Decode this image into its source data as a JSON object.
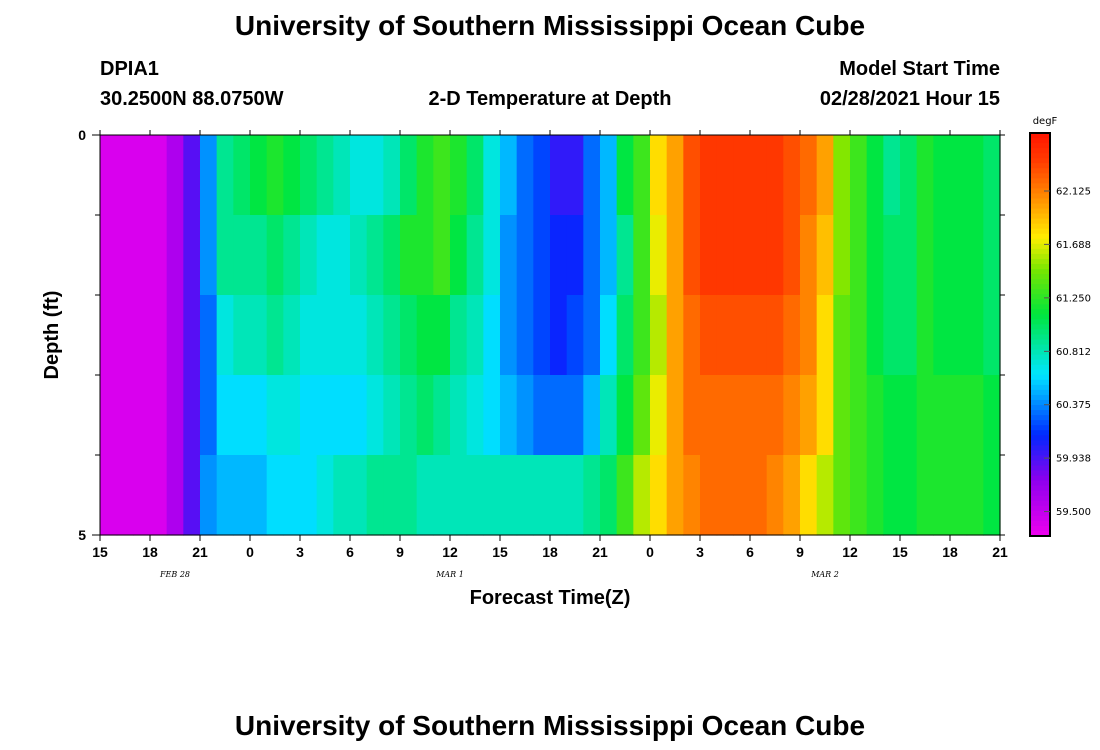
{
  "header": {
    "title_top": "University of Southern Mississippi Ocean Cube",
    "title_bottom": "University of Southern Mississippi Ocean Cube",
    "station_id": "DPIA1",
    "station_coords": "30.2500N 88.0750W",
    "model_start_label": "Model Start Time",
    "model_start_value": "02/28/2021 Hour 15"
  },
  "chart_data": {
    "type": "heatmap",
    "title": "2-D Temperature at Depth",
    "xlabel": "Forecast Time(Z)",
    "ylabel": "Depth (ft)",
    "x_tick_labels": [
      "15",
      "18",
      "21",
      "0",
      "3",
      "6",
      "9",
      "12",
      "15",
      "18",
      "21",
      "0",
      "3",
      "6",
      "9",
      "12",
      "15",
      "18",
      "21"
    ],
    "date_labels": [
      {
        "text": "FEB 28",
        "hour_index": 4.5
      },
      {
        "text": "MAR 1",
        "hour_index": 21
      },
      {
        "text": "MAR 2",
        "hour_index": 43.5
      }
    ],
    "y_tick_labels": {
      "top": "0",
      "bottom": "5"
    },
    "ylim": [
      0,
      5
    ],
    "xlim_hours": [
      0,
      54
    ],
    "colorbar": {
      "unit": "degF",
      "ticks": [
        "62.125",
        "61.688",
        "61.250",
        "60.812",
        "60.375",
        "59.938",
        "59.500"
      ],
      "min": 59.3,
      "max": 62.6
    },
    "depth_layers": 5,
    "temperature_degF": [
      [
        59.4,
        59.4,
        59.4,
        59.4,
        59.6,
        59.9,
        60.4,
        60.9,
        61.0,
        61.1,
        61.2,
        61.1,
        61.0,
        60.9,
        60.8,
        60.7,
        60.7,
        60.8,
        61.0,
        61.2,
        61.3,
        61.2,
        61.0,
        60.7,
        60.5,
        60.3,
        60.2,
        60.0,
        60.0,
        60.3,
        60.5,
        61.1,
        61.3,
        61.8,
        62.0,
        62.3,
        62.4,
        62.4,
        62.4,
        62.4,
        62.4,
        62.3,
        62.2,
        62.0,
        61.5,
        61.3,
        61.1,
        60.9,
        61.0,
        61.2,
        61.1,
        61.1,
        61.1,
        61.0
      ],
      [
        59.4,
        59.4,
        59.4,
        59.4,
        59.6,
        59.9,
        60.4,
        60.9,
        60.9,
        60.9,
        61.0,
        60.9,
        60.8,
        60.7,
        60.7,
        60.8,
        60.9,
        61.0,
        61.2,
        61.2,
        61.3,
        61.1,
        60.9,
        60.7,
        60.4,
        60.3,
        60.2,
        60.1,
        60.1,
        60.3,
        60.5,
        60.9,
        61.3,
        61.7,
        62.0,
        62.3,
        62.4,
        62.4,
        62.4,
        62.4,
        62.4,
        62.3,
        62.1,
        61.9,
        61.5,
        61.3,
        61.1,
        61.0,
        61.0,
        61.2,
        61.1,
        61.1,
        61.1,
        61.0
      ],
      [
        59.4,
        59.4,
        59.4,
        59.4,
        59.6,
        59.9,
        60.3,
        60.7,
        60.8,
        60.8,
        60.9,
        60.8,
        60.7,
        60.7,
        60.7,
        60.7,
        60.8,
        60.9,
        61.0,
        61.1,
        61.1,
        60.9,
        60.8,
        60.6,
        60.4,
        60.3,
        60.2,
        60.1,
        60.2,
        60.3,
        60.6,
        61.0,
        61.3,
        61.6,
        62.0,
        62.2,
        62.3,
        62.3,
        62.3,
        62.3,
        62.3,
        62.2,
        62.1,
        61.8,
        61.4,
        61.3,
        61.1,
        61.0,
        61.0,
        61.2,
        61.1,
        61.1,
        61.1,
        61.0
      ],
      [
        59.4,
        59.4,
        59.4,
        59.4,
        59.6,
        59.9,
        60.3,
        60.6,
        60.6,
        60.6,
        60.7,
        60.7,
        60.6,
        60.6,
        60.6,
        60.6,
        60.7,
        60.8,
        60.9,
        61.0,
        60.9,
        60.8,
        60.7,
        60.6,
        60.5,
        60.4,
        60.3,
        60.3,
        60.3,
        60.5,
        60.8,
        61.1,
        61.4,
        61.7,
        62.0,
        62.2,
        62.2,
        62.2,
        62.2,
        62.2,
        62.2,
        62.1,
        62.0,
        61.8,
        61.4,
        61.3,
        61.2,
        61.1,
        61.1,
        61.2,
        61.2,
        61.2,
        61.2,
        61.1
      ],
      [
        59.4,
        59.4,
        59.4,
        59.4,
        59.6,
        59.9,
        60.4,
        60.5,
        60.5,
        60.5,
        60.6,
        60.6,
        60.6,
        60.7,
        60.8,
        60.8,
        60.9,
        60.9,
        60.9,
        60.8,
        60.8,
        60.8,
        60.8,
        60.8,
        60.8,
        60.8,
        60.8,
        60.8,
        60.8,
        60.9,
        61.0,
        61.3,
        61.6,
        61.8,
        62.0,
        62.1,
        62.2,
        62.2,
        62.2,
        62.2,
        62.1,
        62.0,
        61.8,
        61.6,
        61.4,
        61.3,
        61.2,
        61.1,
        61.1,
        61.2,
        61.2,
        61.2,
        61.2,
        61.1
      ]
    ]
  }
}
